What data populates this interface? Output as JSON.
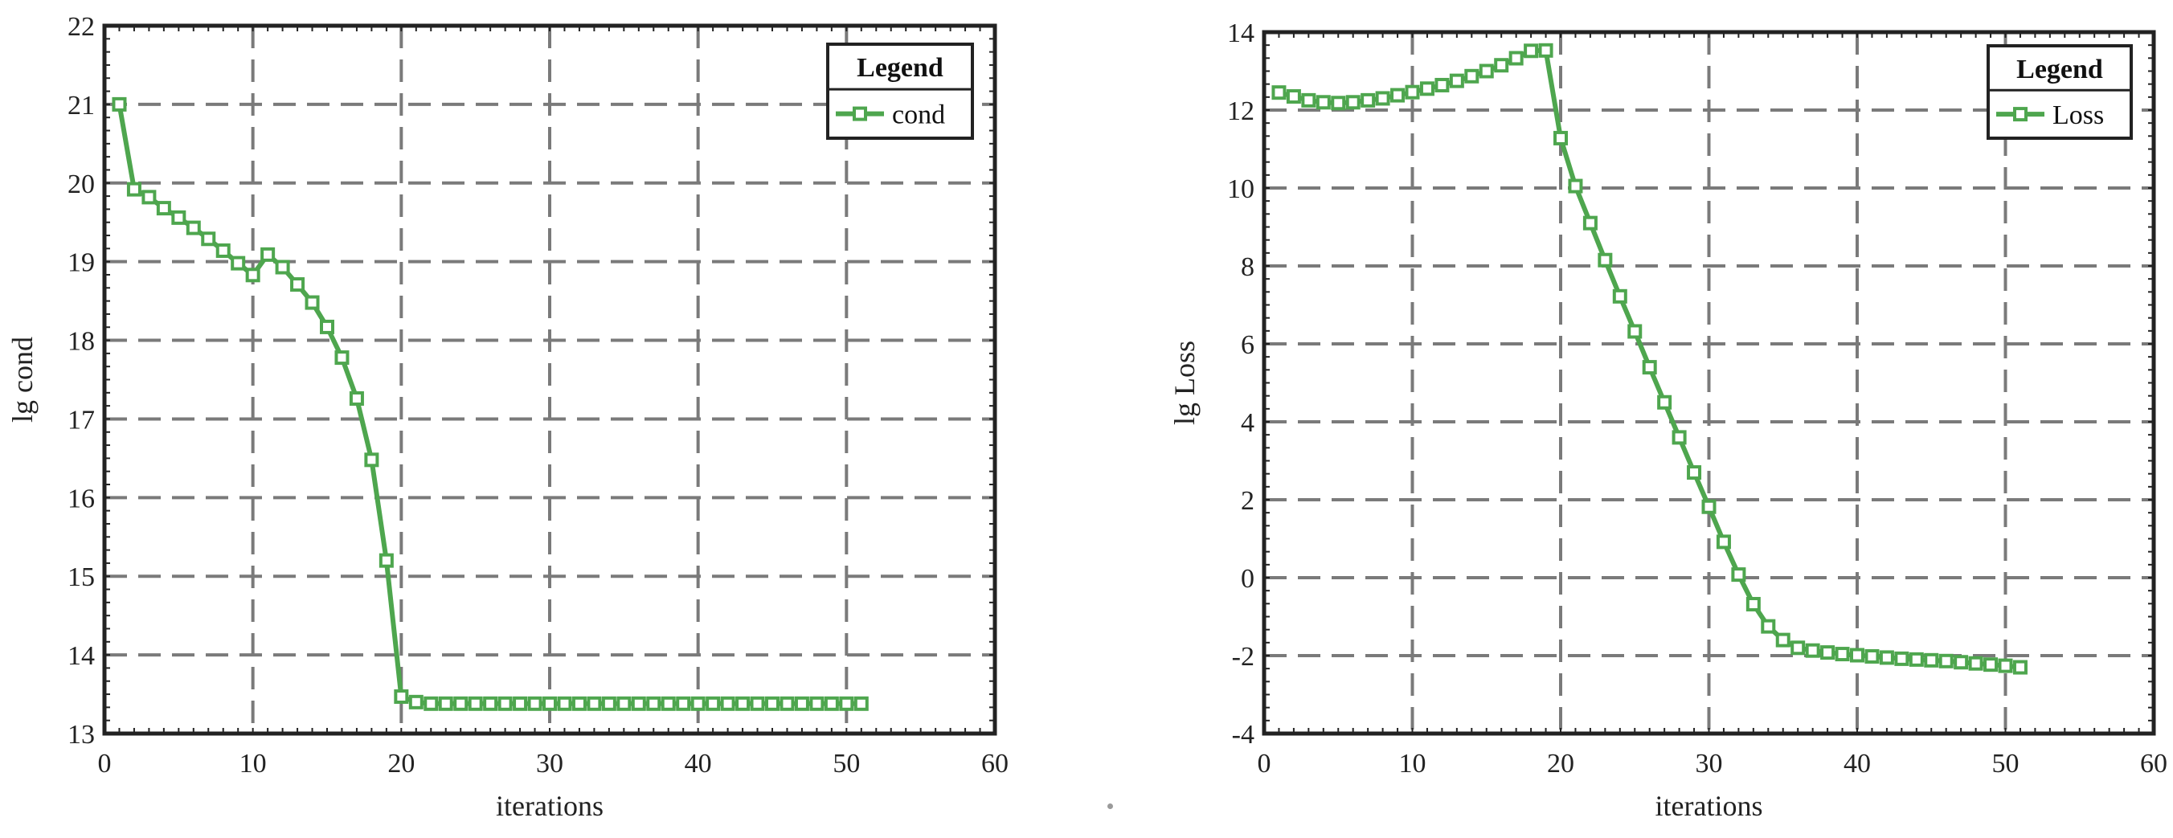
{
  "colors": {
    "series": "#4ea64e",
    "grid": "#7a7a7a",
    "frame": "#222222"
  },
  "chart_data": [
    {
      "type": "line",
      "title": "",
      "xlabel": "iterations",
      "ylabel": "lg cond",
      "xlim": [
        0,
        60
      ],
      "ylim": [
        13,
        22
      ],
      "xticks": [
        0,
        10,
        20,
        30,
        40,
        50,
        60
      ],
      "yticks": [
        13,
        14,
        15,
        16,
        17,
        18,
        19,
        20,
        21,
        22
      ],
      "grid": true,
      "legend": {
        "title": "Legend",
        "position": "top-right"
      },
      "series": [
        {
          "name": "cond",
          "marker": "square",
          "x": [
            1,
            2,
            3,
            4,
            5,
            6,
            7,
            8,
            9,
            10,
            11,
            12,
            13,
            14,
            15,
            16,
            17,
            18,
            19,
            20,
            21,
            22,
            23,
            24,
            25,
            26,
            27,
            28,
            29,
            30,
            31,
            32,
            33,
            34,
            35,
            36,
            37,
            38,
            39,
            40,
            41,
            42,
            43,
            44,
            45,
            46,
            47,
            48,
            49,
            50,
            51
          ],
          "y": [
            21.0,
            19.92,
            19.82,
            19.68,
            19.56,
            19.43,
            19.29,
            19.14,
            18.98,
            18.83,
            19.09,
            18.93,
            18.71,
            18.48,
            18.17,
            17.78,
            17.26,
            16.48,
            15.2,
            13.47,
            13.4,
            13.38,
            13.38,
            13.38,
            13.38,
            13.38,
            13.38,
            13.38,
            13.38,
            13.38,
            13.38,
            13.38,
            13.38,
            13.38,
            13.38,
            13.38,
            13.38,
            13.38,
            13.38,
            13.38,
            13.38,
            13.38,
            13.38,
            13.38,
            13.38,
            13.38,
            13.38,
            13.38,
            13.38,
            13.38,
            13.38
          ]
        }
      ]
    },
    {
      "type": "line",
      "title": "",
      "xlabel": "iterations",
      "ylabel": "lg Loss",
      "xlim": [
        0,
        60
      ],
      "ylim": [
        -4,
        14
      ],
      "xticks": [
        0,
        10,
        20,
        30,
        40,
        50,
        60
      ],
      "yticks": [
        -4,
        -2,
        0,
        2,
        4,
        6,
        8,
        10,
        12,
        14
      ],
      "grid": true,
      "legend": {
        "title": "Legend",
        "position": "top-right"
      },
      "series": [
        {
          "name": "Loss",
          "marker": "square",
          "x": [
            1,
            2,
            3,
            4,
            5,
            6,
            7,
            8,
            9,
            10,
            11,
            12,
            13,
            14,
            15,
            16,
            17,
            18,
            19,
            20,
            21,
            22,
            23,
            24,
            25,
            26,
            27,
            28,
            29,
            30,
            31,
            32,
            33,
            34,
            35,
            36,
            37,
            38,
            39,
            40,
            41,
            42,
            43,
            44,
            45,
            46,
            47,
            48,
            49,
            50,
            51
          ],
          "y": [
            12.45,
            12.35,
            12.25,
            12.2,
            12.18,
            12.2,
            12.25,
            12.3,
            12.38,
            12.46,
            12.55,
            12.64,
            12.75,
            12.87,
            13.0,
            13.15,
            13.33,
            13.52,
            13.53,
            11.28,
            10.05,
            9.1,
            8.15,
            7.22,
            6.32,
            5.4,
            4.5,
            3.6,
            2.7,
            1.82,
            0.92,
            0.08,
            -0.68,
            -1.25,
            -1.6,
            -1.8,
            -1.87,
            -1.92,
            -1.96,
            -1.99,
            -2.02,
            -2.05,
            -2.08,
            -2.1,
            -2.12,
            -2.14,
            -2.17,
            -2.2,
            -2.23,
            -2.26,
            -2.3
          ]
        }
      ]
    }
  ]
}
